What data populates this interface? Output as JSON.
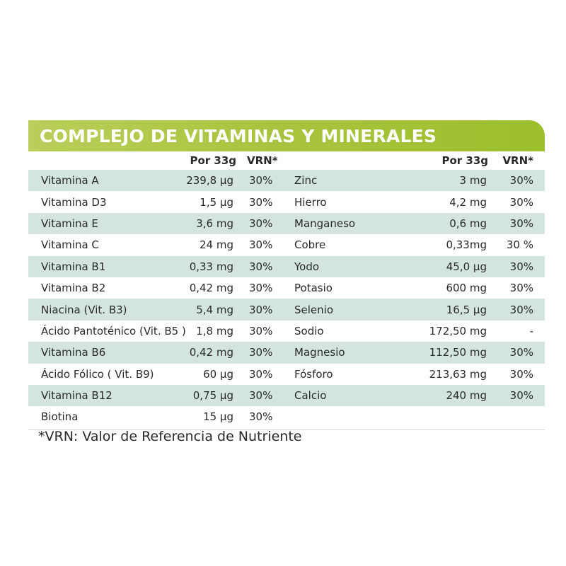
{
  "title": "COMPLEJO DE VITAMINAS Y MINERALES",
  "header": {
    "amount": "Por 33g",
    "vrn": "VRN*"
  },
  "left_rows": [
    {
      "name": "Vitamina A",
      "amount": "239,8 µg",
      "vrn": "30%"
    },
    {
      "name": "Vitamina D3",
      "amount": "1,5 µg",
      "vrn": "30%"
    },
    {
      "name": "Vitamina E",
      "amount": "3,6 mg",
      "vrn": "30%"
    },
    {
      "name": "Vitamina C",
      "amount": "24 mg",
      "vrn": "30%"
    },
    {
      "name": "Vitamina B1",
      "amount": "0,33 mg",
      "vrn": "30%"
    },
    {
      "name": "Vitamina B2",
      "amount": "0,42 mg",
      "vrn": "30%"
    },
    {
      "name": "Niacina (Vit. B3)",
      "amount": "5,4 mg",
      "vrn": "30%"
    },
    {
      "name": "Ácido Pantoténico (Vit. B5 )",
      "amount": "1,8 mg",
      "vrn": "30%"
    },
    {
      "name": "Vitamina B6",
      "amount": "0,42 mg",
      "vrn": "30%"
    },
    {
      "name": "Ácido Fólico ( Vit. B9)",
      "amount": "60 µg",
      "vrn": "30%"
    },
    {
      "name": "Vitamina B12",
      "amount": "0,75 µg",
      "vrn": "30%"
    },
    {
      "name": "Biotina",
      "amount": "15 µg",
      "vrn": "30%"
    }
  ],
  "right_rows": [
    {
      "name": "Zinc",
      "amount": "3 mg",
      "vrn": "30%"
    },
    {
      "name": "Hierro",
      "amount": "4,2 mg",
      "vrn": "30%"
    },
    {
      "name": "Manganeso",
      "amount": "0,6 mg",
      "vrn": "30%"
    },
    {
      "name": "Cobre",
      "amount": "0,33mg",
      "vrn": "30 %"
    },
    {
      "name": "Yodo",
      "amount": "45,0 µg",
      "vrn": "30%"
    },
    {
      "name": "Potasio",
      "amount": "600 mg",
      "vrn": "30%"
    },
    {
      "name": "Selenio",
      "amount": "16,5 µg",
      "vrn": "30%"
    },
    {
      "name": "Sodio",
      "amount": "172,50 mg",
      "vrn": "-"
    },
    {
      "name": "Magnesio",
      "amount": "112,50 mg",
      "vrn": "30%"
    },
    {
      "name": "Fósforo",
      "amount": "213,63 mg",
      "vrn": "30%"
    },
    {
      "name": "Calcio",
      "amount": "240 mg",
      "vrn": "30%"
    }
  ],
  "footnote": "*VRN: Valor de Referencia de Nutriente",
  "colors": {
    "banner_start": "#b9cf5a",
    "banner_end": "#9dbf2c",
    "row_shade": "#d3e5dd",
    "banner_text": "#ffffff"
  }
}
